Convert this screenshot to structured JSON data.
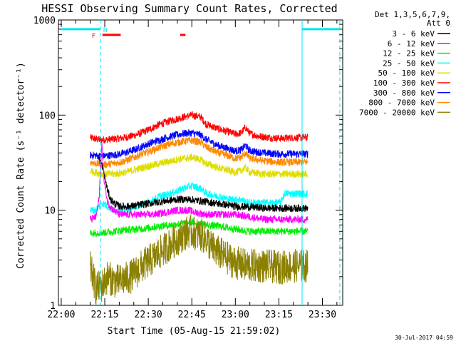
{
  "chart_data": {
    "type": "line",
    "title": "HESSI Observing Summary Count Rates, Corrected",
    "xlabel": "Start Time (05-Aug-15 21:59:02)",
    "ylabel": "Corrected Count Rate (s⁻¹ detector⁻¹)",
    "y_scale": "log",
    "ylim": [
      1,
      1000
    ],
    "xlim_minutes_from_2200": [
      -0.97,
      97.0
    ],
    "x_ticks": [
      "22:00",
      "22:15",
      "22:30",
      "22:45",
      "23:00",
      "23:15",
      "23:30"
    ],
    "x_tick_minutes": [
      0,
      15,
      30,
      45,
      60,
      75,
      90
    ],
    "y_ticks": [
      "1",
      "10",
      "100",
      "1000"
    ],
    "y_tick_values": [
      1,
      10,
      100,
      1000
    ],
    "grid": false,
    "legend": {
      "placement": "outside-right",
      "header": [
        "Det 1,3,5,6,7,9,",
        "Att 0"
      ],
      "entries": [
        {
          "label": "3 - 6 keV",
          "color": "#000000"
        },
        {
          "label": "6 - 12 keV",
          "color": "#ff00ff"
        },
        {
          "label": "12 - 25 keV",
          "color": "#00ee00"
        },
        {
          "label": "25 - 50 keV",
          "color": "#00ffff"
        },
        {
          "label": "50 - 100 keV",
          "color": "#dddd00"
        },
        {
          "label": "100 - 300 keV",
          "color": "#ff0000"
        },
        {
          "label": "300 - 800 keV",
          "color": "#0000ff"
        },
        {
          "label": "800 - 7000 keV",
          "color": "#ff8800"
        },
        {
          "label": "7000 - 20000 keV",
          "color": "#8b8000"
        }
      ]
    },
    "series": [
      {
        "color": "#ff0000",
        "points": [
          [
            10,
            58
          ],
          [
            13,
            55
          ],
          [
            15,
            55
          ],
          [
            18,
            56
          ],
          [
            22,
            58
          ],
          [
            26,
            62
          ],
          [
            30,
            70
          ],
          [
            34,
            80
          ],
          [
            38,
            88
          ],
          [
            42,
            95
          ],
          [
            45,
            100
          ],
          [
            48,
            96
          ],
          [
            50,
            80
          ],
          [
            54,
            72
          ],
          [
            58,
            66
          ],
          [
            60,
            63
          ],
          [
            62,
            65
          ],
          [
            63.5,
            74
          ],
          [
            65,
            64
          ],
          [
            68,
            60
          ],
          [
            72,
            58
          ],
          [
            76,
            57
          ],
          [
            80,
            58
          ],
          [
            85,
            58
          ]
        ]
      },
      {
        "color": "#0000ff",
        "points": [
          [
            10,
            38
          ],
          [
            14,
            37
          ],
          [
            18,
            38
          ],
          [
            22,
            40
          ],
          [
            26,
            44
          ],
          [
            30,
            50
          ],
          [
            34,
            55
          ],
          [
            38,
            60
          ],
          [
            42,
            64
          ],
          [
            45,
            65
          ],
          [
            48,
            62
          ],
          [
            50,
            55
          ],
          [
            54,
            48
          ],
          [
            58,
            44
          ],
          [
            60,
            42
          ],
          [
            62,
            43
          ],
          [
            63.5,
            48
          ],
          [
            65,
            42
          ],
          [
            70,
            40
          ],
          [
            75,
            39
          ],
          [
            80,
            39
          ],
          [
            85,
            39
          ]
        ]
      },
      {
        "color": "#ff8800",
        "points": [
          [
            10,
            32
          ],
          [
            14,
            30
          ],
          [
            18,
            31
          ],
          [
            22,
            33
          ],
          [
            26,
            37
          ],
          [
            30,
            41
          ],
          [
            34,
            46
          ],
          [
            38,
            50
          ],
          [
            42,
            53
          ],
          [
            45,
            54
          ],
          [
            48,
            52
          ],
          [
            50,
            46
          ],
          [
            54,
            40
          ],
          [
            58,
            37
          ],
          [
            60,
            35
          ],
          [
            62,
            36
          ],
          [
            63.5,
            40
          ],
          [
            65,
            35
          ],
          [
            70,
            33
          ],
          [
            75,
            32
          ],
          [
            80,
            32
          ],
          [
            85,
            32
          ]
        ]
      },
      {
        "color": "#dddd00",
        "points": [
          [
            10,
            26
          ],
          [
            14,
            24
          ],
          [
            18,
            24
          ],
          [
            22,
            25
          ],
          [
            26,
            27
          ],
          [
            30,
            29
          ],
          [
            34,
            31
          ],
          [
            38,
            33
          ],
          [
            42,
            35
          ],
          [
            45,
            36
          ],
          [
            48,
            34
          ],
          [
            50,
            31
          ],
          [
            54,
            28
          ],
          [
            58,
            26
          ],
          [
            60,
            25
          ],
          [
            62,
            26
          ],
          [
            63.5,
            28
          ],
          [
            65,
            25
          ],
          [
            70,
            24
          ],
          [
            75,
            24
          ],
          [
            80,
            24
          ],
          [
            85,
            24
          ]
        ]
      },
      {
        "color": "#00ffff",
        "points": [
          [
            10,
            10
          ],
          [
            12,
            10
          ],
          [
            14,
            12
          ],
          [
            16,
            11
          ],
          [
            18,
            10
          ],
          [
            22,
            10
          ],
          [
            26,
            11
          ],
          [
            30,
            12
          ],
          [
            34,
            14
          ],
          [
            38,
            15
          ],
          [
            42,
            17
          ],
          [
            45,
            18
          ],
          [
            48,
            17
          ],
          [
            50,
            15
          ],
          [
            54,
            14
          ],
          [
            58,
            13
          ],
          [
            60,
            13
          ],
          [
            62,
            13
          ],
          [
            64,
            12
          ],
          [
            66,
            12
          ],
          [
            70,
            12
          ],
          [
            74,
            12
          ],
          [
            75.5,
            12
          ],
          [
            77,
            15
          ],
          [
            80,
            15
          ],
          [
            85,
            15
          ]
        ]
      },
      {
        "color": "#000000",
        "points": [
          [
            13,
            35
          ],
          [
            14,
            30
          ],
          [
            15,
            22
          ],
          [
            16,
            16
          ],
          [
            17,
            13
          ],
          [
            18,
            12
          ],
          [
            20,
            11
          ],
          [
            24,
            11
          ],
          [
            28,
            11.5
          ],
          [
            32,
            12
          ],
          [
            36,
            12.5
          ],
          [
            40,
            13
          ],
          [
            44,
            13
          ],
          [
            48,
            12.5
          ],
          [
            52,
            12
          ],
          [
            56,
            11.5
          ],
          [
            60,
            11
          ],
          [
            65,
            10.8
          ],
          [
            70,
            10.5
          ],
          [
            75,
            10.5
          ],
          [
            80,
            10.5
          ],
          [
            85,
            10.5
          ]
        ]
      },
      {
        "color": "#ff00ff",
        "points": [
          [
            10,
            8
          ],
          [
            12,
            8.5
          ],
          [
            13,
            13
          ],
          [
            14,
            50
          ],
          [
            14.8,
            20
          ],
          [
            16,
            12
          ],
          [
            18,
            10
          ],
          [
            20,
            9
          ],
          [
            24,
            9
          ],
          [
            28,
            9
          ],
          [
            32,
            9
          ],
          [
            36,
            9.5
          ],
          [
            40,
            10
          ],
          [
            44,
            10
          ],
          [
            46,
            9.5
          ],
          [
            50,
            9
          ],
          [
            55,
            9
          ],
          [
            60,
            9
          ],
          [
            65,
            8.5
          ],
          [
            70,
            8
          ],
          [
            75,
            8
          ],
          [
            80,
            8
          ],
          [
            85,
            8
          ]
        ]
      },
      {
        "color": "#00ee00",
        "points": [
          [
            10,
            5.8
          ],
          [
            14,
            5.8
          ],
          [
            18,
            6
          ],
          [
            22,
            6.2
          ],
          [
            26,
            6.3
          ],
          [
            30,
            6.5
          ],
          [
            34,
            6.8
          ],
          [
            38,
            7
          ],
          [
            42,
            7.3
          ],
          [
            45,
            7.5
          ],
          [
            48,
            7.2
          ],
          [
            50,
            7
          ],
          [
            54,
            6.8
          ],
          [
            58,
            6.5
          ],
          [
            60,
            6.3
          ],
          [
            65,
            6
          ],
          [
            70,
            6
          ],
          [
            75,
            6
          ],
          [
            80,
            6
          ],
          [
            85,
            6
          ]
        ]
      },
      {
        "color": "#8b8000",
        "points": [
          [
            10,
            2.5
          ],
          [
            12,
            1.5
          ],
          [
            14,
            1.6
          ],
          [
            16,
            2
          ],
          [
            18,
            1.8
          ],
          [
            20,
            1.8
          ],
          [
            24,
            2
          ],
          [
            28,
            2.6
          ],
          [
            32,
            3.2
          ],
          [
            36,
            4
          ],
          [
            40,
            5
          ],
          [
            44,
            6
          ],
          [
            48,
            5.5
          ],
          [
            50,
            5
          ],
          [
            52,
            4
          ],
          [
            56,
            3.3
          ],
          [
            60,
            2.8
          ],
          [
            64,
            2.6
          ],
          [
            70,
            2.6
          ],
          [
            75,
            2.5
          ],
          [
            80,
            2.6
          ],
          [
            85,
            2.6
          ]
        ]
      }
    ],
    "annotations": {
      "flag_F": "F",
      "flag_N": "N",
      "night_intervals_minutes": [
        [
          0,
          13.5
        ],
        [
          83.0,
          96.0
        ]
      ],
      "night_level": 800,
      "flare_bars_minutes": [
        [
          14.2,
          20.5
        ],
        [
          41.0,
          42.8
        ]
      ]
    },
    "timestamp": "30-Jul-2017 04:59"
  }
}
